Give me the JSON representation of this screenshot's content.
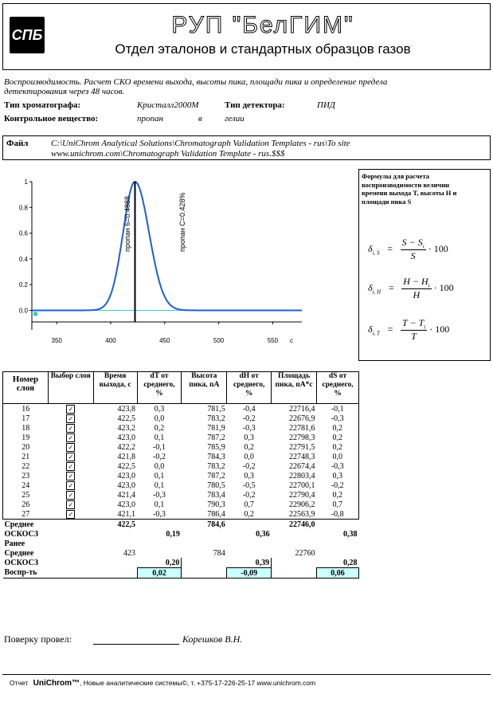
{
  "header": {
    "logo_text": "СПБ",
    "org": "РУП \"БелГИМ\"",
    "dept": "Отдел эталонов и стандартных образцов газов"
  },
  "info": {
    "description": "Воспроизводимость. Расчет СКО времени выхода, высоты пика, площади пика и определение предела детектирования через 48 часов.",
    "chrom_label": "Тип хроматографа:",
    "chrom_value": "Кристалл2000М",
    "det_label": "Тип детектора:",
    "det_value": "ПИД",
    "sub_label": "Контрольное вещество:",
    "sub_value": "пропан",
    "in_word": "в",
    "carrier": "гелии"
  },
  "file": {
    "label": "Файл",
    "line1": "C:\\UniChrom Analytical Solutions\\Chromatograph Validation Templates - rus\\To site",
    "line2": "www.unichrom.com\\Chromatograph Validation Template - rus.$$$"
  },
  "formulas": {
    "title": "Формулы для расчета воспроизводимости величин времени выхода T, высоты H и площади пика S",
    "f1_lhs": "δ",
    "f1_sub": "i, S",
    "f1_num": "S − S",
    "f1_num_sub": "i",
    "f1_den": "S",
    "f2_lhs": "δ",
    "f2_sub": "i, H",
    "f2_num": "H − H",
    "f2_num_sub": "i",
    "f2_den": "H",
    "f3_lhs": "δ",
    "f3_sub": "i, T",
    "f3_num": "T − T",
    "f3_num_sub": "i",
    "f3_den": "T",
    "mult": "· 100",
    "eq": "="
  },
  "chart_data": {
    "type": "line",
    "x_ticks": [
      "350",
      "400",
      "450",
      "500",
      "550"
    ],
    "x_unit": "c",
    "y_ticks": [
      "0.0",
      "0.2",
      "0.4",
      "0.6",
      "0.8",
      "1"
    ],
    "xlim": [
      327,
      577
    ],
    "ylim": [
      -0.09,
      1.0
    ],
    "peak_x": 422.5,
    "peak_label_left": "пропан 6=0.4888",
    "peak_label_right": "пропан C=0.428%",
    "colors": {
      "curve": "#1e5fd0",
      "baseline": "#33cccc"
    }
  },
  "table": {
    "headers": [
      "Номер слоя",
      "Выбор слоя",
      "Время выхода, с",
      "dT от среднего, %",
      "Высота пика, пА",
      "dH от среднего, %",
      "Площадь пика, пА*с",
      "dS от среднего, %"
    ],
    "rows": [
      [
        "16",
        "423,8",
        "0,3",
        "781,5",
        "-0,4",
        "22716,4",
        "-0,1"
      ],
      [
        "17",
        "422,5",
        "0,0",
        "783,2",
        "-0,2",
        "22676,9",
        "-0,3"
      ],
      [
        "18",
        "423,2",
        "0,2",
        "781,9",
        "-0,3",
        "22781,6",
        "0,2"
      ],
      [
        "19",
        "423,0",
        "0,1",
        "787,2",
        "0,3",
        "22798,3",
        "0,2"
      ],
      [
        "20",
        "422,2",
        "-0,1",
        "785,9",
        "0,2",
        "22791,5",
        "0,2"
      ],
      [
        "21",
        "421,8",
        "-0,2",
        "784,3",
        "0,0",
        "22748,3",
        "0,0"
      ],
      [
        "22",
        "422,5",
        "0,0",
        "783,2",
        "-0,2",
        "22674,4",
        "-0,3"
      ],
      [
        "23",
        "423,0",
        "0,1",
        "787,2",
        "0,3",
        "22803,4",
        "0,3"
      ],
      [
        "24",
        "423,0",
        "0,1",
        "780,5",
        "-0,5",
        "22700,1",
        "-0,2"
      ],
      [
        "25",
        "421,4",
        "-0,3",
        "783,4",
        "-0,2",
        "22790,4",
        "0,2"
      ],
      [
        "26",
        "423,0",
        "0,1",
        "790,3",
        "0,7",
        "22906,2",
        "0,7"
      ],
      [
        "27",
        "421,1",
        "-0,3",
        "786,4",
        "0,2",
        "22563,9",
        "-0,8"
      ]
    ],
    "mean_label": "Среднее",
    "mean": [
      "422,5",
      "784,6",
      "22746,0"
    ],
    "sko_label": "ОСКОСЗ",
    "sko": [
      "0,19",
      "0,36",
      "0,38"
    ],
    "prev_label": "Ранее",
    "prev_mean_label": "Среднее",
    "prev_mean": [
      "423",
      "784",
      "22760"
    ],
    "prev_sko_label": "ОСКОСЗ",
    "prev_sko": [
      "0,20",
      "0,39",
      "0,28"
    ],
    "repro_label": "Воспр-ть",
    "repro": [
      "0,02",
      "-0,09",
      "0,06"
    ]
  },
  "footer": {
    "check_label": "Поверку провел:",
    "checker": "Корешков В.Н.",
    "report_prefix": "Отчет",
    "brand": "UniChrom™",
    "report_suffix": ", Новые аналитические системы©, т. +375-17-226-25-17 www.unichrom.com"
  }
}
